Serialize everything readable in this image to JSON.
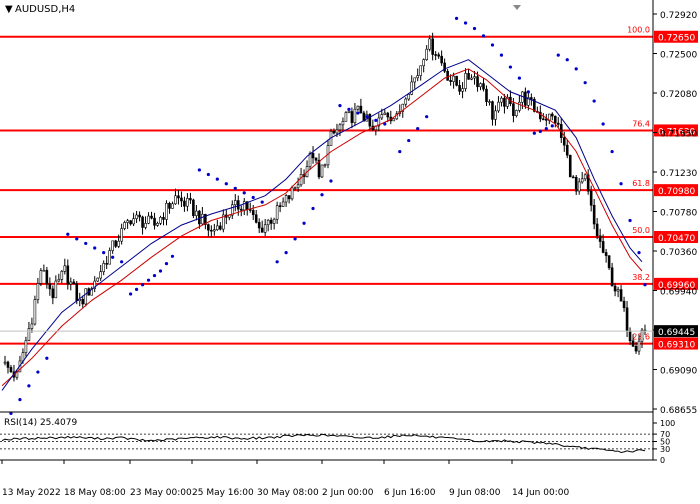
{
  "symbol_label": "AUDUSD,H4",
  "rsi_label": "RSI(14) 25.4079",
  "current_price": "0.69445",
  "colors": {
    "fib_line": "#ff0000",
    "fib_label_bg": "#ff0000",
    "candle": "#000000",
    "ma_red": "#cc0000",
    "ma_blue": "#00008b",
    "sar": "#0000cc",
    "rsi_line": "#000000",
    "price_line": "#c0c0c0"
  },
  "chart_data": {
    "type": "candlestick",
    "ylim": [
      0.68565,
      0.7305
    ],
    "y_ticks": [
      "0.72920",
      "0.72500",
      "0.72080",
      "0.71650",
      "0.71230",
      "0.70780",
      "0.70360",
      "0.69940",
      "0.69510",
      "0.69090",
      "0.68655"
    ],
    "x_ticks": [
      "13 May 2022",
      "18 May 08:00",
      "23 May 00:00",
      "25 May 16:00",
      "30 May 08:00",
      "2 Jun 00:00",
      "6 Jun 16:00",
      "9 Jun 08:00",
      "14 Jun 00:00"
    ],
    "fib_levels": [
      {
        "pct": "100.0",
        "price": 0.7265,
        "label": "0.72650"
      },
      {
        "pct": "76.4",
        "price": 0.7163,
        "label": "0.71630"
      },
      {
        "pct": "61.8",
        "price": 0.7098,
        "label": "0.70980"
      },
      {
        "pct": "50.0",
        "price": 0.7047,
        "label": "0.70470"
      },
      {
        "pct": "38.2",
        "price": 0.6996,
        "label": "0.69960"
      },
      {
        "pct": "23.6",
        "price": 0.6931,
        "label": "0.69310"
      }
    ],
    "close_path": [
      [
        0,
        0.691
      ],
      [
        5,
        0.6895
      ],
      [
        10,
        0.696
      ],
      [
        13,
        0.7012
      ],
      [
        17,
        0.6985
      ],
      [
        21,
        0.701
      ],
      [
        26,
        0.6975
      ],
      [
        31,
        0.6998
      ],
      [
        36,
        0.703
      ],
      [
        43,
        0.7068
      ],
      [
        51,
        0.706
      ],
      [
        58,
        0.709
      ],
      [
        63,
        0.708
      ],
      [
        70,
        0.7052
      ],
      [
        76,
        0.7075
      ],
      [
        81,
        0.7085
      ],
      [
        86,
        0.7055
      ],
      [
        91,
        0.707
      ],
      [
        97,
        0.7095
      ],
      [
        101,
        0.712
      ],
      [
        104,
        0.7138
      ],
      [
        106,
        0.711
      ],
      [
        110,
        0.7155
      ],
      [
        115,
        0.7175
      ],
      [
        120,
        0.7185
      ],
      [
        124,
        0.716
      ],
      [
        128,
        0.7185
      ],
      [
        132,
        0.7175
      ],
      [
        135,
        0.7205
      ],
      [
        139,
        0.7225
      ],
      [
        142,
        0.7258
      ],
      [
        145,
        0.725
      ],
      [
        148,
        0.723
      ],
      [
        150,
        0.7218
      ],
      [
        153,
        0.721
      ],
      [
        157,
        0.7225
      ],
      [
        161,
        0.721
      ],
      [
        164,
        0.718
      ],
      [
        168,
        0.7195
      ],
      [
        171,
        0.7185
      ],
      [
        174,
        0.72
      ],
      [
        177,
        0.719
      ],
      [
        180,
        0.718
      ],
      [
        185,
        0.7175
      ],
      [
        188,
        0.7145
      ],
      [
        192,
        0.7095
      ],
      [
        195,
        0.711
      ],
      [
        198,
        0.706
      ],
      [
        201,
        0.703
      ],
      [
        204,
        0.7
      ],
      [
        207,
        0.6975
      ],
      [
        210,
        0.694
      ],
      [
        212,
        0.693
      ],
      [
        214,
        0.6945
      ]
    ],
    "ma_red": [
      [
        0,
        0.6885
      ],
      [
        10,
        0.6915
      ],
      [
        20,
        0.695
      ],
      [
        30,
        0.6978
      ],
      [
        40,
        0.7
      ],
      [
        50,
        0.7025
      ],
      [
        60,
        0.7048
      ],
      [
        70,
        0.7065
      ],
      [
        80,
        0.7075
      ],
      [
        88,
        0.7082
      ],
      [
        95,
        0.7095
      ],
      [
        102,
        0.7118
      ],
      [
        110,
        0.714
      ],
      [
        120,
        0.716
      ],
      [
        130,
        0.7175
      ],
      [
        140,
        0.72
      ],
      [
        148,
        0.722
      ],
      [
        156,
        0.723
      ],
      [
        162,
        0.7218
      ],
      [
        170,
        0.7195
      ],
      [
        178,
        0.7185
      ],
      [
        185,
        0.717
      ],
      [
        192,
        0.714
      ],
      [
        198,
        0.71
      ],
      [
        204,
        0.706
      ],
      [
        210,
        0.7025
      ],
      [
        214,
        0.701
      ]
    ],
    "ma_blue": [
      [
        0,
        0.688
      ],
      [
        10,
        0.6925
      ],
      [
        20,
        0.6965
      ],
      [
        30,
        0.699
      ],
      [
        40,
        0.7015
      ],
      [
        50,
        0.704
      ],
      [
        60,
        0.706
      ],
      [
        70,
        0.7072
      ],
      [
        80,
        0.7082
      ],
      [
        88,
        0.7092
      ],
      [
        95,
        0.711
      ],
      [
        102,
        0.7135
      ],
      [
        110,
        0.7155
      ],
      [
        120,
        0.7172
      ],
      [
        130,
        0.719
      ],
      [
        140,
        0.7212
      ],
      [
        148,
        0.723
      ],
      [
        156,
        0.724
      ],
      [
        162,
        0.7225
      ],
      [
        170,
        0.7205
      ],
      [
        178,
        0.7195
      ],
      [
        185,
        0.7185
      ],
      [
        192,
        0.7155
      ],
      [
        198,
        0.711
      ],
      [
        204,
        0.707
      ],
      [
        210,
        0.7035
      ],
      [
        214,
        0.702
      ]
    ],
    "sar": [
      [
        3,
        0.6855
      ],
      [
        6,
        0.687
      ],
      [
        9,
        0.6885
      ],
      [
        12,
        0.69
      ],
      [
        15,
        0.6915
      ],
      [
        22,
        0.705
      ],
      [
        25,
        0.7045
      ],
      [
        28,
        0.704
      ],
      [
        31,
        0.7035
      ],
      [
        34,
        0.703
      ],
      [
        37,
        0.7025
      ],
      [
        40,
        0.702
      ],
      [
        43,
        0.6985
      ],
      [
        45,
        0.699
      ],
      [
        47,
        0.6995
      ],
      [
        49,
        0.7
      ],
      [
        51,
        0.7005
      ],
      [
        53,
        0.701
      ],
      [
        55,
        0.7018
      ],
      [
        57,
        0.7026
      ],
      [
        66,
        0.712
      ],
      [
        69,
        0.7115
      ],
      [
        72,
        0.711
      ],
      [
        75,
        0.7105
      ],
      [
        78,
        0.71
      ],
      [
        81,
        0.7095
      ],
      [
        84,
        0.709
      ],
      [
        87,
        0.7085
      ],
      [
        92,
        0.702
      ],
      [
        95,
        0.703
      ],
      [
        98,
        0.7045
      ],
      [
        101,
        0.7062
      ],
      [
        104,
        0.7078
      ],
      [
        107,
        0.7093
      ],
      [
        110,
        0.7108
      ],
      [
        113,
        0.719
      ],
      [
        116,
        0.7186
      ],
      [
        119,
        0.7182
      ],
      [
        122,
        0.7178
      ],
      [
        125,
        0.7174
      ],
      [
        128,
        0.717
      ],
      [
        133,
        0.714
      ],
      [
        136,
        0.7152
      ],
      [
        139,
        0.7165
      ],
      [
        142,
        0.7178
      ],
      [
        152,
        0.7285
      ],
      [
        155,
        0.728
      ],
      [
        158,
        0.7274
      ],
      [
        161,
        0.7266
      ],
      [
        164,
        0.7256
      ],
      [
        167,
        0.7245
      ],
      [
        170,
        0.7232
      ],
      [
        173,
        0.722
      ],
      [
        176,
        0.7205
      ],
      [
        178,
        0.716
      ],
      [
        180,
        0.7162
      ],
      [
        182,
        0.7165
      ],
      [
        184,
        0.7168
      ],
      [
        186,
        0.7245
      ],
      [
        189,
        0.724
      ],
      [
        192,
        0.723
      ],
      [
        195,
        0.7215
      ],
      [
        198,
        0.7195
      ],
      [
        201,
        0.717
      ],
      [
        204,
        0.714
      ],
      [
        207,
        0.7105
      ],
      [
        210,
        0.7065
      ],
      [
        213,
        0.703
      ],
      [
        215,
        0.6995
      ]
    ],
    "rsi": {
      "level_lines": [
        70,
        50,
        30
      ],
      "y_ticks": [
        "100",
        "70",
        "50",
        "30",
        "0"
      ],
      "values": [
        [
          0,
          55
        ],
        [
          8,
          58
        ],
        [
          16,
          60
        ],
        [
          24,
          62
        ],
        [
          32,
          58
        ],
        [
          40,
          60
        ],
        [
          48,
          52
        ],
        [
          56,
          55
        ],
        [
          64,
          60
        ],
        [
          72,
          62
        ],
        [
          80,
          58
        ],
        [
          88,
          60
        ],
        [
          96,
          65
        ],
        [
          104,
          68
        ],
        [
          112,
          65
        ],
        [
          120,
          60
        ],
        [
          128,
          62
        ],
        [
          136,
          68
        ],
        [
          144,
          62
        ],
        [
          152,
          56
        ],
        [
          160,
          50
        ],
        [
          168,
          52
        ],
        [
          176,
          48
        ],
        [
          184,
          45
        ],
        [
          190,
          35
        ],
        [
          196,
          32
        ],
        [
          202,
          26
        ],
        [
          208,
          22
        ],
        [
          212,
          25
        ],
        [
          214,
          25.4
        ]
      ]
    }
  }
}
